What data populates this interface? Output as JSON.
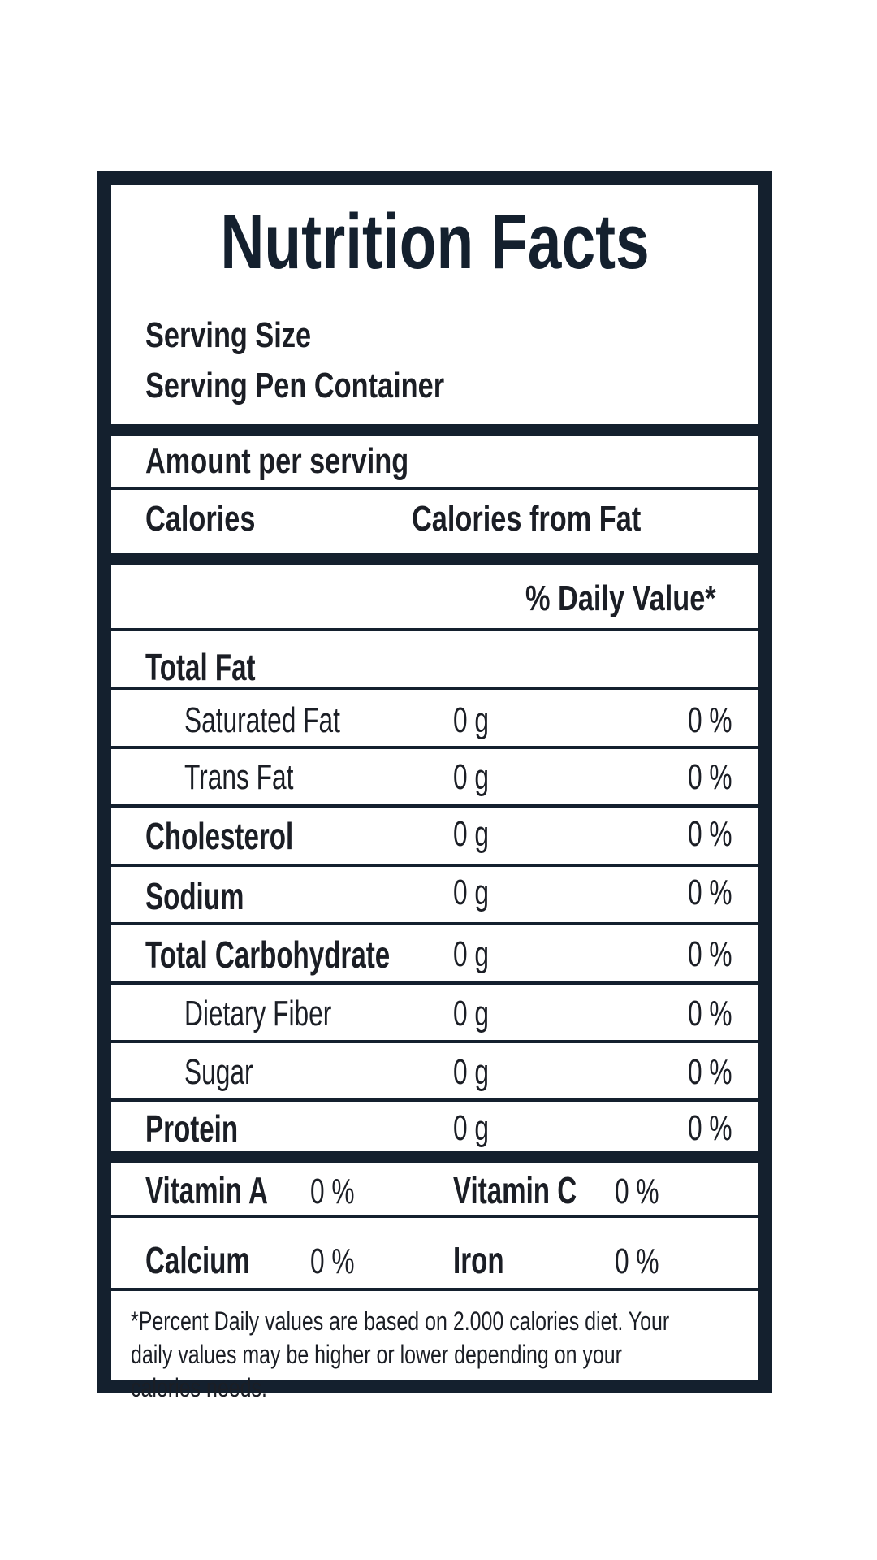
{
  "title": "Nutrition Facts",
  "serving": {
    "size_label": "Serving Size",
    "container_label": "Serving Pen Container"
  },
  "amount_per_serving": "Amount per serving",
  "calories": {
    "label": "Calories",
    "from_fat_label": "Calories from Fat"
  },
  "daily_value_header": "% Daily Value*",
  "total_fat": "Total Fat",
  "nutrients": [
    {
      "label": "Saturated Fat",
      "amount": "0 g",
      "dv": "0 %"
    },
    {
      "label": "Trans Fat",
      "amount": "0 g",
      "dv": "0 %"
    },
    {
      "label": "Cholesterol",
      "amount": "0 g",
      "dv": "0 %"
    },
    {
      "label": "Sodium",
      "amount": "0 g",
      "dv": "0 %"
    },
    {
      "label": "Total Carbohydrate",
      "amount": "0 g",
      "dv": "0 %"
    },
    {
      "label": "Dietary Fiber",
      "amount": "0 g",
      "dv": "0 %"
    },
    {
      "label": "Sugar",
      "amount": "0 g",
      "dv": "0 %"
    },
    {
      "label": "Protein",
      "amount": "0 g",
      "dv": "0 %"
    }
  ],
  "vitamins": [
    {
      "label": "Vitamin A",
      "value": "0 %"
    },
    {
      "label": "Vitamin C",
      "value": "0 %"
    },
    {
      "label": "Calcium",
      "value": "0 %"
    },
    {
      "label": "Iron",
      "value": "0 %"
    }
  ],
  "footnote": "*Percent Daily values are based on 2.000 calories diet. Your daily values may be higher or lower depending on your calories needs.",
  "colors": {
    "border": "#14202e",
    "text": "#1b1e25",
    "background": "#ffffff"
  }
}
